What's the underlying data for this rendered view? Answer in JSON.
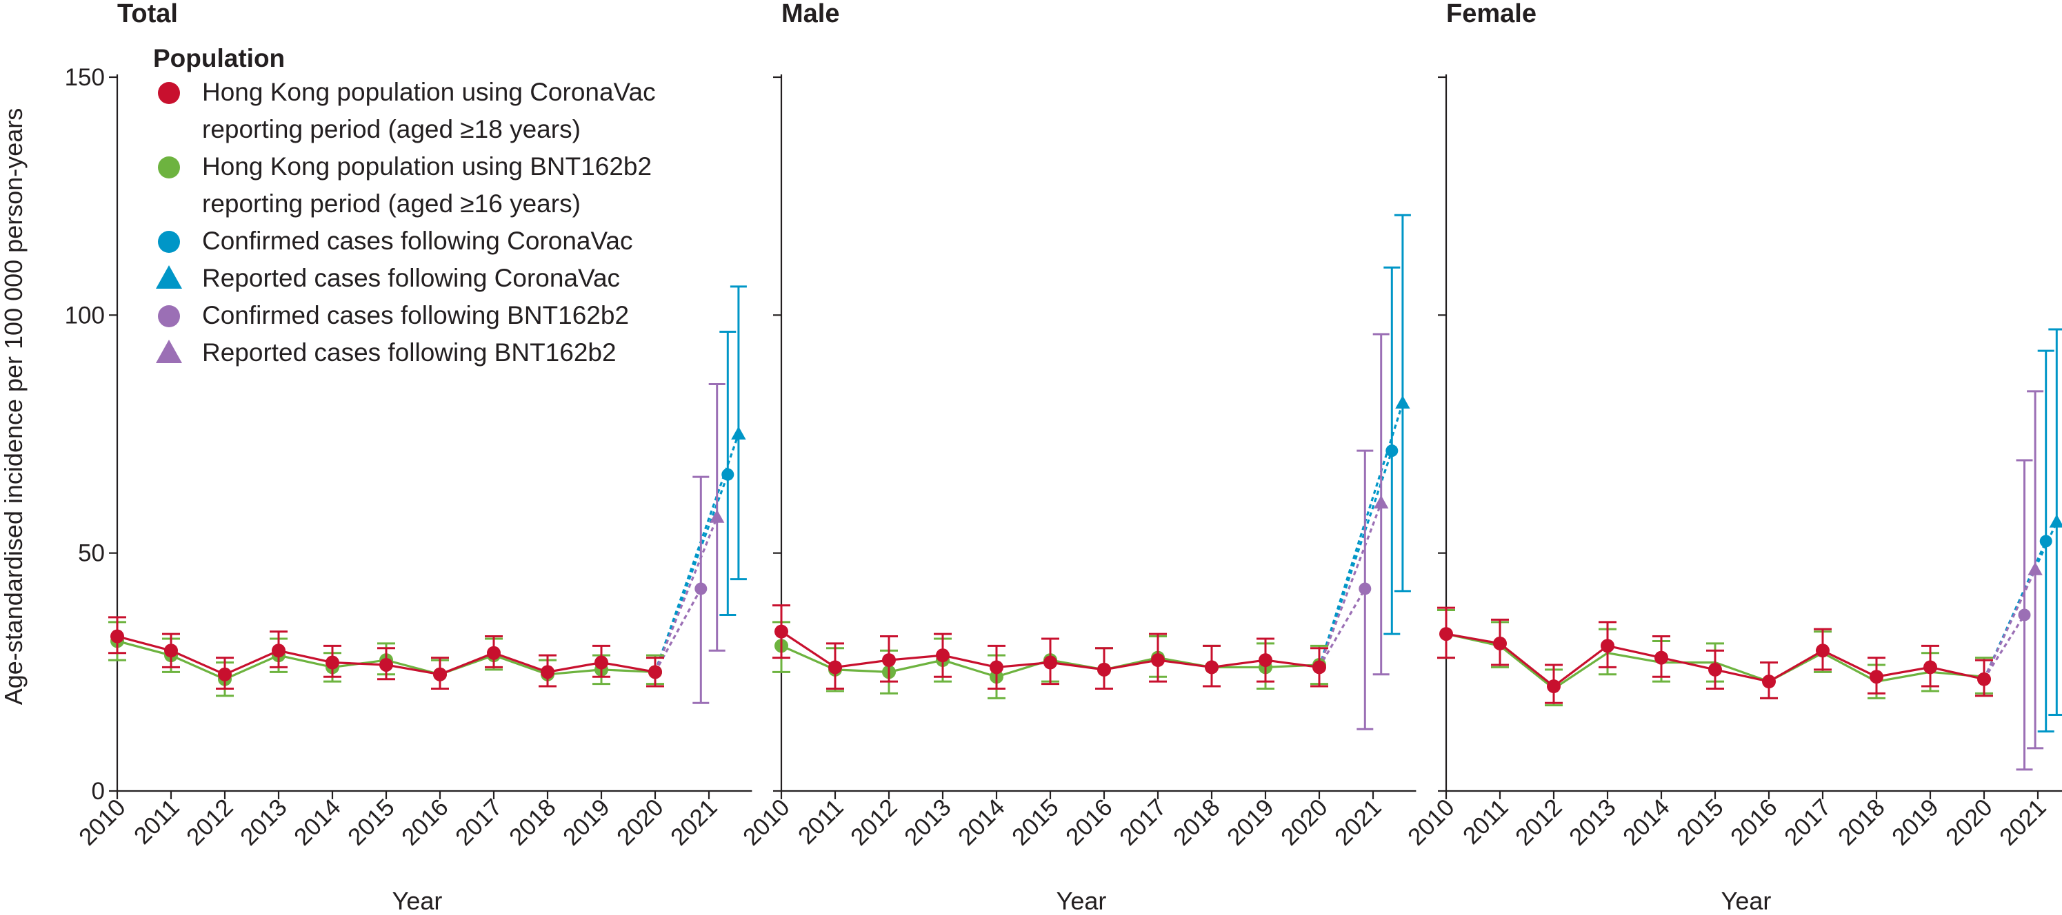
{
  "chart_data": {
    "type": "line",
    "ylabel": "Age-standardised incidence per 100 000 person-years",
    "xlabel": "Year",
    "ylim": [
      0,
      150
    ],
    "yticks": [
      0,
      50,
      100,
      150
    ],
    "xticks": [
      "2010",
      "2011",
      "2012",
      "2013",
      "2014",
      "2015",
      "2016",
      "2017",
      "2018",
      "2019",
      "2020",
      "2021"
    ],
    "grid": false,
    "legend": {
      "title": "Population",
      "position": "top-left",
      "entries": [
        {
          "key": "cv_pop",
          "marker": "circle",
          "lines": [
            "Hong Kong population using CoronaVac",
            "reporting period (aged ≥18 years)"
          ]
        },
        {
          "key": "bnt_pop",
          "marker": "circle",
          "lines": [
            "Hong Kong population using BNT162b2",
            "reporting period (aged ≥16 years)"
          ]
        },
        {
          "key": "cv_conf",
          "marker": "circle",
          "lines": [
            "Confirmed cases following CoronaVac"
          ]
        },
        {
          "key": "cv_rep",
          "marker": "triangle",
          "lines": [
            "Reported cases following CoronaVac"
          ]
        },
        {
          "key": "bnt_conf",
          "marker": "circle",
          "lines": [
            "Confirmed cases following BNT162b2"
          ]
        },
        {
          "key": "bnt_rep",
          "marker": "triangle",
          "lines": [
            "Reported cases following BNT162b2"
          ]
        }
      ]
    },
    "colors": {
      "cv_pop": "#c8102e",
      "bnt_pop": "#6db33f",
      "cv": "#0096c7",
      "bnt": "#9b6fb5"
    },
    "panels": [
      {
        "title": "Total",
        "series": [
          {
            "key": "bnt_pop",
            "x": [
              2010,
              2011,
              2012,
              2013,
              2014,
              2015,
              2016,
              2017,
              2018,
              2019,
              2020
            ],
            "y": [
              31.5,
              28.5,
              23.5,
              28.5,
              26,
              27.5,
              24.5,
              28.5,
              24.5,
              25.5,
              25
            ],
            "lo": [
              27.5,
              25,
              20,
              25,
              23,
              24.5,
              21.5,
              25.5,
              22,
              22.5,
              22.5
            ],
            "hi": [
              35.5,
              32,
              27,
              32,
              29,
              31,
              27.5,
              32,
              27.5,
              28.5,
              28.5
            ]
          },
          {
            "key": "cv_pop",
            "x": [
              2010,
              2011,
              2012,
              2013,
              2014,
              2015,
              2016,
              2017,
              2018,
              2019,
              2020
            ],
            "y": [
              32.5,
              29.5,
              24.5,
              29.5,
              27,
              26.5,
              24.5,
              29,
              25,
              27,
              25
            ],
            "lo": [
              29,
              26,
              21.5,
              26,
              24,
              23.5,
              21.5,
              26,
              22,
              24,
              22
            ],
            "hi": [
              36.5,
              33,
              28,
              33.5,
              30.5,
              30,
              28,
              32.5,
              28.5,
              30.5,
              28
            ]
          },
          {
            "key": "bnt_conf",
            "x": 2020.85,
            "y": 42.5,
            "lo": 18.5,
            "hi": 66
          },
          {
            "key": "bnt_rep",
            "x": 2021.15,
            "y": 57.5,
            "lo": 29.5,
            "hi": 85.5
          },
          {
            "key": "cv_conf",
            "x": 2021.35,
            "y": 66.5,
            "lo": 37,
            "hi": 96.5
          },
          {
            "key": "cv_rep",
            "x": 2021.55,
            "y": 75,
            "lo": 44.5,
            "hi": 106
          }
        ]
      },
      {
        "title": "Male",
        "series": [
          {
            "key": "bnt_pop",
            "x": [
              2010,
              2011,
              2012,
              2013,
              2014,
              2015,
              2016,
              2017,
              2018,
              2019,
              2020
            ],
            "y": [
              30.5,
              25.5,
              25,
              27.5,
              24,
              27.5,
              25.5,
              28,
              26,
              26,
              26.5
            ],
            "lo": [
              25,
              21,
              20.5,
              23,
              19.5,
              23,
              21.5,
              24,
              22,
              21.5,
              22.5
            ],
            "hi": [
              35.5,
              30,
              29.5,
              32,
              28.5,
              32,
              30,
              32.5,
              30.5,
              31,
              30.5
            ]
          },
          {
            "key": "cv_pop",
            "x": [
              2010,
              2011,
              2012,
              2013,
              2014,
              2015,
              2016,
              2017,
              2018,
              2019,
              2020
            ],
            "y": [
              33.5,
              26,
              27.5,
              28.5,
              26,
              27,
              25.5,
              27.5,
              26,
              27.5,
              26
            ],
            "lo": [
              28,
              21.5,
              23,
              24,
              21.5,
              22.5,
              21.5,
              23,
              22,
              23,
              22
            ],
            "hi": [
              39,
              31,
              32.5,
              33,
              30.5,
              32,
              30,
              33,
              30.5,
              32,
              30
            ]
          },
          {
            "key": "bnt_conf",
            "x": 2020.85,
            "y": 42.5,
            "lo": 13,
            "hi": 71.5
          },
          {
            "key": "bnt_rep",
            "x": 2021.15,
            "y": 60.5,
            "lo": 24.5,
            "hi": 96
          },
          {
            "key": "cv_conf",
            "x": 2021.35,
            "y": 71.5,
            "lo": 33,
            "hi": 110
          },
          {
            "key": "cv_rep",
            "x": 2021.55,
            "y": 81.5,
            "lo": 42,
            "hi": 121
          }
        ]
      },
      {
        "title": "Female",
        "series": [
          {
            "key": "bnt_pop",
            "x": [
              2010,
              2011,
              2012,
              2013,
              2014,
              2015,
              2016,
              2017,
              2018,
              2019,
              2020
            ],
            "y": [
              33,
              30.5,
              21.5,
              29,
              27,
              27,
              23,
              29,
              23,
              25,
              24
            ],
            "lo": [
              28,
              26,
              18,
              24.5,
              23,
              23,
              19.5,
              25,
              19.5,
              21,
              20.5
            ],
            "hi": [
              38,
              35.5,
              25.5,
              34,
              31.5,
              31,
              27,
              33.5,
              26.5,
              29,
              28
            ],
            "style": "line-only"
          },
          {
            "key": "cv_pop",
            "x": [
              2010,
              2011,
              2012,
              2013,
              2014,
              2015,
              2016,
              2017,
              2018,
              2019,
              2020
            ],
            "y": [
              33,
              31,
              22,
              30.5,
              28,
              25.5,
              23,
              29.5,
              24,
              26,
              23.5
            ],
            "lo": [
              28,
              26.5,
              18.5,
              26,
              24,
              21.5,
              19.5,
              25.5,
              20.5,
              22,
              20
            ],
            "hi": [
              38.5,
              36,
              26.5,
              35.5,
              32.5,
              29.5,
              27,
              34,
              28,
              30.5,
              27.5
            ]
          },
          {
            "key": "bnt_conf",
            "x": 2020.75,
            "y": 37,
            "lo": 4.5,
            "hi": 69.5
          },
          {
            "key": "bnt_rep",
            "x": 2020.95,
            "y": 46.5,
            "lo": 9,
            "hi": 84
          },
          {
            "key": "cv_conf",
            "x": 2021.15,
            "y": 52.5,
            "lo": 12.5,
            "hi": 92.5
          },
          {
            "key": "cv_rep",
            "x": 2021.35,
            "y": 56.5,
            "lo": 16,
            "hi": 97
          }
        ]
      }
    ]
  }
}
